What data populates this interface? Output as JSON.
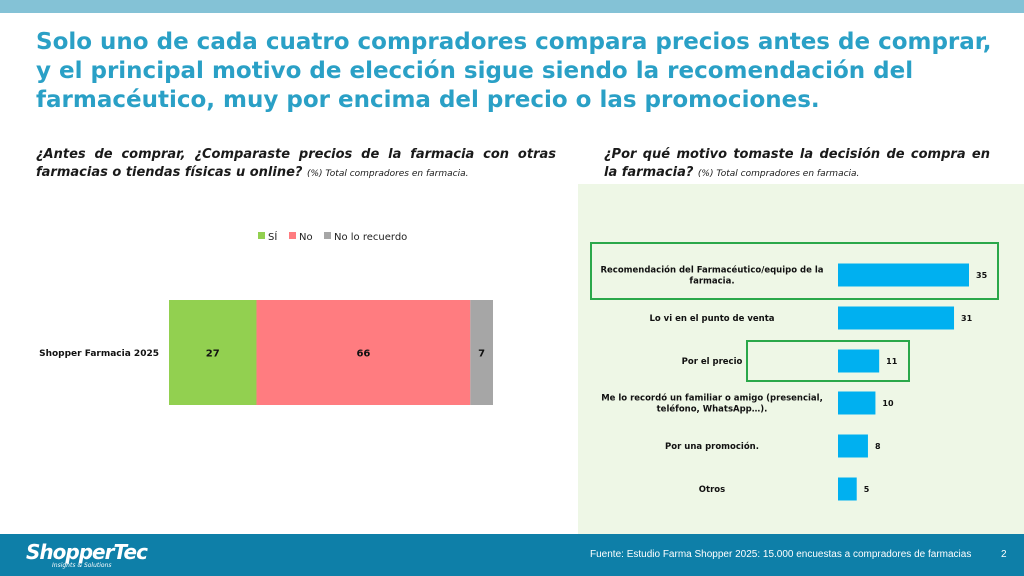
{
  "title": "Solo uno de cada cuatro compradores compara precios antes de comprar, y el principal motivo de elección sigue siendo la recomendación del farmacéutico, muy por encima del precio o las promociones.",
  "left": {
    "question": "¿Antes de comprar, ¿Comparaste precios de la farmacia con otras farmacias o tiendas  físicas  u online?",
    "note": "(%) Total compradores en farmacia."
  },
  "right": {
    "question": "¿Por qué motivo tomaste la decisión de compra en la farmacia?",
    "note": "(%) Total compradores en farmacia."
  },
  "colors": {
    "si": "#92d050",
    "no": "#ff7c80",
    "no_recuerdo": "#a6a6a6",
    "bar_blue": "#00b0f0",
    "highlight": "#2aa84a"
  },
  "chart_data": [
    {
      "type": "bar",
      "orientation": "horizontal",
      "stacked": true,
      "categories": [
        "Shopper Farmacia 2025"
      ],
      "series": [
        {
          "name": "SÍ",
          "values": [
            27
          ]
        },
        {
          "name": "No",
          "values": [
            66
          ]
        },
        {
          "name": "No lo recuerdo",
          "values": [
            7
          ]
        }
      ],
      "legend": "top",
      "xlim": [
        0,
        100
      ]
    },
    {
      "type": "bar",
      "orientation": "horizontal",
      "categories": [
        "Recomendación del Farmacéutico/equipo de la farmacia.",
        "Lo vi en el punto de venta",
        "Por el precio",
        "Me lo recordó un familiar o amigo (presencial, teléfono, WhatsApp…).",
        "Por una promoción.",
        "Otros"
      ],
      "category_lines": [
        [
          "Recomendación del Farmacéutico/equipo de la",
          "farmacia."
        ],
        [
          "Lo vi en el punto de venta"
        ],
        [
          "Por el precio"
        ],
        [
          "Me lo recordó un familiar o amigo (presencial,",
          "teléfono, WhatsApp…)."
        ],
        [
          "Por una promoción."
        ],
        [
          "Otros"
        ]
      ],
      "values": [
        35,
        31,
        11,
        10,
        8,
        5
      ],
      "highlighted": [
        0,
        2
      ],
      "xlim": [
        0,
        35
      ]
    }
  ],
  "footer": {
    "logo": "ShopperTec",
    "logo_sub": "Insights & Solutions",
    "source": "Fuente: Estudio Farma Shopper 2025: 15.000 encuestas a compradores de farmacias",
    "page": "2"
  }
}
